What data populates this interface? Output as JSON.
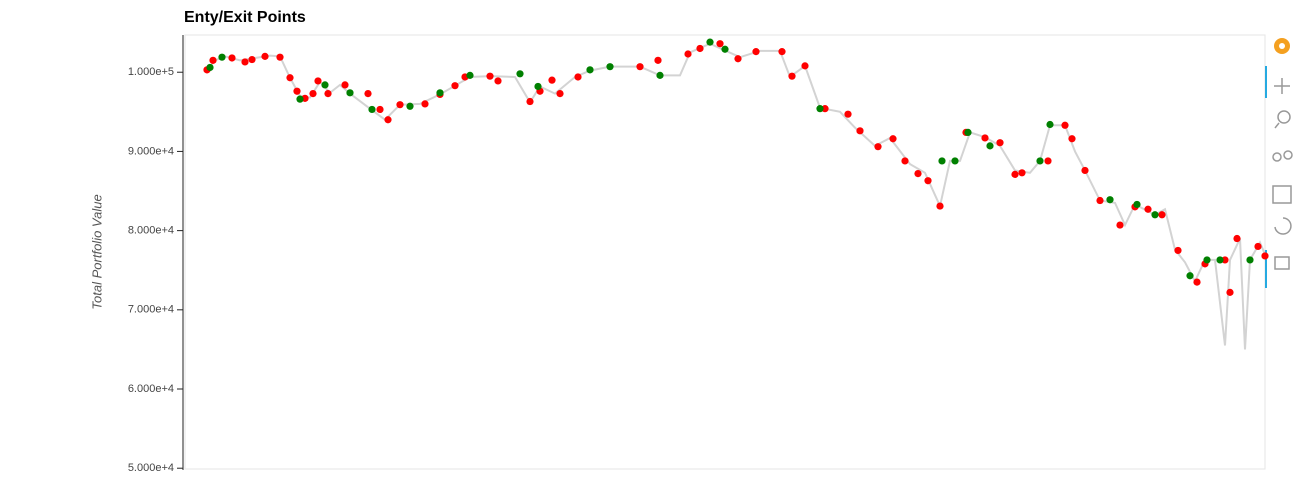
{
  "chart_data": {
    "type": "line",
    "title": "Enty/Exit Points",
    "y_label": "Total Portfolio Value",
    "xlim": [
      0,
      1080
    ],
    "ylim": [
      49900,
      104700
    ],
    "yticks": [
      {
        "value": 50000,
        "label": "5.000e+4"
      },
      {
        "value": 60000,
        "label": "6.000e+4"
      },
      {
        "value": 70000,
        "label": "7.000e+4"
      },
      {
        "value": 80000,
        "label": "8.000e+4"
      },
      {
        "value": 90000,
        "label": "9.000e+4"
      },
      {
        "value": 100000,
        "label": "1.000e+5"
      }
    ],
    "series": [
      {
        "type": "line",
        "color": "#d3d3d3",
        "x": [
          20,
          30,
          40,
          55,
          70,
          85,
          95,
          105,
          115,
          125,
          135,
          145,
          155,
          165,
          185,
          200,
          215,
          235,
          255,
          270,
          285,
          305,
          330,
          345,
          355,
          370,
          390,
          405,
          425,
          455,
          475,
          495,
          505,
          525,
          555,
          575,
          595,
          605,
          620,
          635,
          655,
          670,
          690,
          705,
          725,
          740,
          755,
          765,
          775,
          785,
          800,
          815,
          830,
          845,
          855,
          865,
          880,
          890,
          900,
          915,
          930,
          940,
          950,
          970,
          980,
          990,
          1000,
          1010,
          1020,
          1030,
          1040,
          1045,
          1055,
          1060,
          1065,
          1075,
          1080
        ],
        "values": [
          100000,
          101500,
          102000,
          101500,
          101800,
          102100,
          102000,
          99300,
          97000,
          96800,
          98800,
          97400,
          98400,
          97300,
          95400,
          94000,
          95900,
          96000,
          97200,
          98300,
          99400,
          99500,
          99400,
          96200,
          98200,
          97300,
          99400,
          100200,
          100700,
          100700,
          99600,
          99600,
          102500,
          103600,
          101900,
          102700,
          102700,
          99400,
          100800,
          95500,
          95000,
          93000,
          90700,
          91700,
          88400,
          87300,
          83100,
          88800,
          88800,
          92400,
          91800,
          90700,
          87600,
          87300,
          88800,
          93300,
          93300,
          90000,
          87600,
          83800,
          83500,
          80700,
          83300,
          82000,
          82700,
          77600,
          76000,
          73600,
          76300,
          76300,
          65500,
          76300,
          79000,
          65000,
          76300,
          78500,
          77000
        ]
      },
      {
        "type": "scatter",
        "color": "#ff0000",
        "x": [
          22,
          28,
          47,
          60,
          67,
          80,
          95,
          105,
          112,
          120,
          128,
          133,
          143,
          160,
          183,
          195,
          203,
          215,
          240,
          255,
          270,
          280,
          305,
          313,
          345,
          355,
          367,
          375,
          393,
          455,
          473,
          503,
          515,
          535,
          553,
          571,
          597,
          607,
          620,
          640,
          663,
          675,
          693,
          708,
          720,
          733,
          743,
          755,
          781,
          800,
          815,
          830,
          837,
          863,
          880,
          887,
          900,
          915,
          935,
          950,
          963,
          977,
          993,
          1012,
          1020,
          1040,
          1045,
          1052,
          1073,
          1080
        ],
        "values": [
          100300,
          101500,
          101800,
          101300,
          101600,
          102000,
          101900,
          99300,
          97600,
          96700,
          97300,
          98900,
          97300,
          98400,
          97300,
          95300,
          94000,
          95900,
          96000,
          97200,
          98300,
          99400,
          99500,
          98900,
          96300,
          97600,
          99000,
          97300,
          99400,
          100700,
          101500,
          102300,
          103000,
          103600,
          101700,
          102600,
          102600,
          99500,
          100800,
          95400,
          94700,
          92600,
          90600,
          91600,
          88800,
          87200,
          86300,
          83100,
          92400,
          91700,
          91100,
          87100,
          87300,
          88800,
          93300,
          91600,
          87600,
          83800,
          80700,
          83000,
          82700,
          82000,
          77500,
          73500,
          75800,
          76300,
          72200,
          79000,
          78000,
          76800
        ]
      },
      {
        "type": "scatter",
        "color": "#008000",
        "x": [
          25,
          37,
          115,
          140,
          165,
          187,
          225,
          255,
          285,
          335,
          353,
          405,
          425,
          475,
          525,
          540,
          635,
          757,
          770,
          783,
          805,
          855,
          865,
          925,
          952,
          970,
          1005,
          1022,
          1035,
          1065
        ],
        "values": [
          100600,
          101900,
          96600,
          98400,
          97400,
          95300,
          95700,
          97400,
          99600,
          99800,
          98200,
          100300,
          100700,
          99600,
          103800,
          102900,
          95400,
          88800,
          88800,
          92400,
          90700,
          88800,
          93400,
          83900,
          83300,
          82000,
          74300,
          76300,
          76300,
          76300
        ]
      }
    ]
  }
}
